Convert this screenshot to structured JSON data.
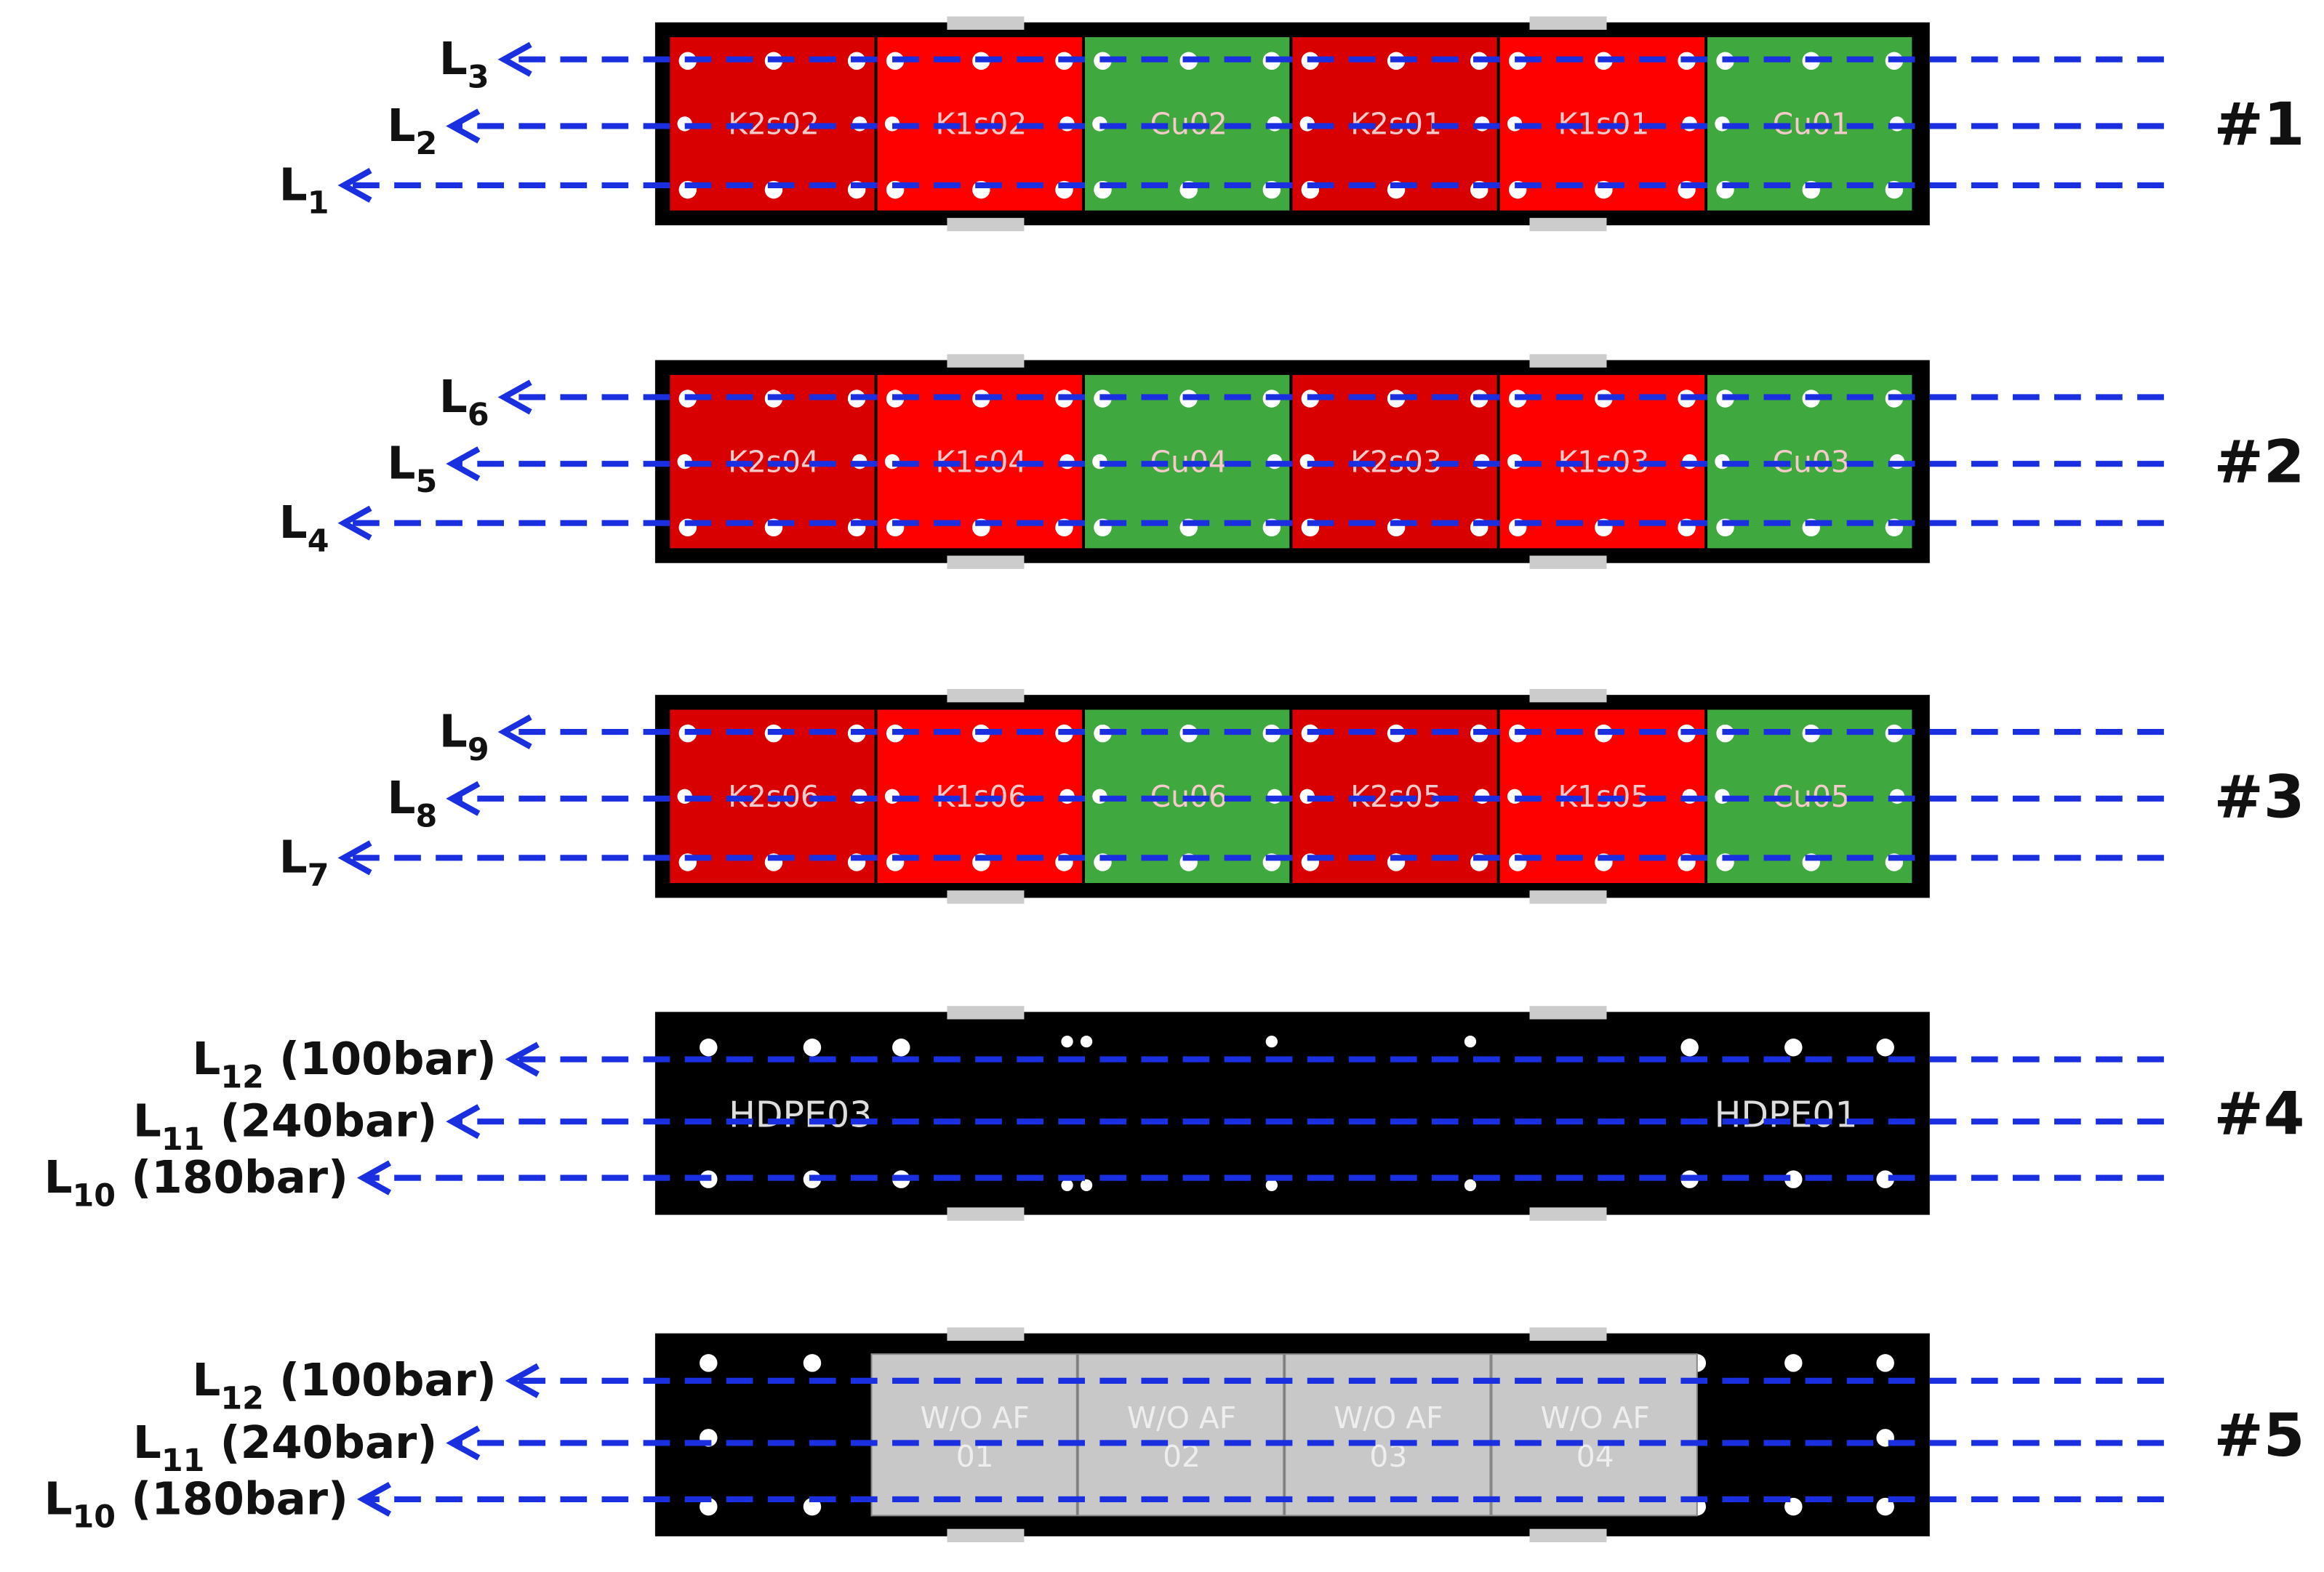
{
  "panels": [
    {
      "id": "#1",
      "lines": [
        {
          "main": "L",
          "sub": "3"
        },
        {
          "main": "L",
          "sub": "2"
        },
        {
          "main": "L",
          "sub": "1"
        }
      ],
      "segments": [
        {
          "label": "K2s02",
          "color": "#d80000"
        },
        {
          "label": "K1s02",
          "color": "#ff0000"
        },
        {
          "label": "Cu02",
          "color": "#3fa83f"
        },
        {
          "label": "K2s01",
          "color": "#d80000"
        },
        {
          "label": "K1s01",
          "color": "#ff0000"
        },
        {
          "label": "Cu01",
          "color": "#3fa83f"
        }
      ]
    },
    {
      "id": "#2",
      "lines": [
        {
          "main": "L",
          "sub": "6"
        },
        {
          "main": "L",
          "sub": "5"
        },
        {
          "main": "L",
          "sub": "4"
        }
      ],
      "segments": [
        {
          "label": "K2s04",
          "color": "#d80000"
        },
        {
          "label": "K1s04",
          "color": "#ff0000"
        },
        {
          "label": "Cu04",
          "color": "#3fa83f"
        },
        {
          "label": "K2s03",
          "color": "#d80000"
        },
        {
          "label": "K1s03",
          "color": "#ff0000"
        },
        {
          "label": "Cu03",
          "color": "#3fa83f"
        }
      ]
    },
    {
      "id": "#3",
      "lines": [
        {
          "main": "L",
          "sub": "9"
        },
        {
          "main": "L",
          "sub": "8"
        },
        {
          "main": "L",
          "sub": "7"
        }
      ],
      "segments": [
        {
          "label": "K2s06",
          "color": "#d80000"
        },
        {
          "label": "K1s06",
          "color": "#ff0000"
        },
        {
          "label": "Cu06",
          "color": "#3fa83f"
        },
        {
          "label": "K2s05",
          "color": "#d80000"
        },
        {
          "label": "K1s05",
          "color": "#ff0000"
        },
        {
          "label": "Cu05",
          "color": "#3fa83f"
        }
      ]
    },
    {
      "id": "#4",
      "lines": [
        {
          "main": "L",
          "sub": "12",
          "suffix": " (100bar)"
        },
        {
          "main": "L",
          "sub": "11",
          "suffix": " (240bar)"
        },
        {
          "main": "L",
          "sub": "10",
          "suffix": " (180bar)"
        }
      ],
      "markers": [
        "HDPE03",
        "HDPE01"
      ]
    },
    {
      "id": "#5",
      "lines": [
        {
          "main": "L",
          "sub": "12",
          "suffix": " (100bar)"
        },
        {
          "main": "L",
          "sub": "11",
          "suffix": " (240bar)"
        },
        {
          "main": "L",
          "sub": "10",
          "suffix": " (180bar)"
        }
      ],
      "cells": [
        [
          "W/O AF",
          "01"
        ],
        [
          "W/O AF",
          "02"
        ],
        [
          "W/O AF",
          "03"
        ],
        [
          "W/O AF",
          "04"
        ]
      ]
    }
  ]
}
